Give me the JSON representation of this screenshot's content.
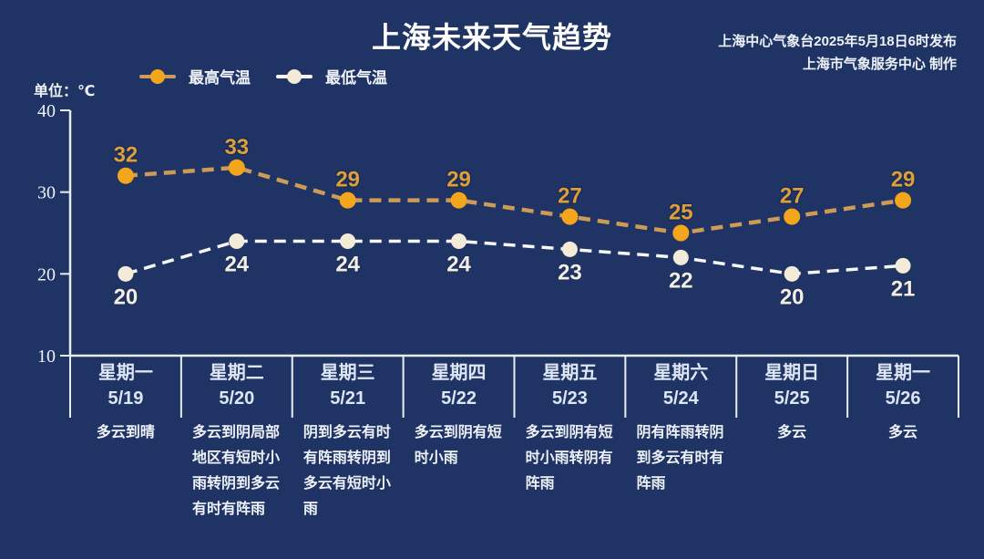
{
  "chart_data": {
    "type": "line",
    "title": "上海未来天气趋势",
    "issued_by": "上海中心气象台2025年5月18日6时发布",
    "produced_by": "上海市气象服务中心 制作",
    "unit_label": "单位：℃",
    "ylim": [
      10,
      40
    ],
    "yticks": [
      40,
      30,
      20,
      10
    ],
    "grid": false,
    "legend_position": "top-left",
    "categories": [
      {
        "day": "星期一",
        "date": "5/19",
        "weather": "多云到晴"
      },
      {
        "day": "星期二",
        "date": "5/20",
        "weather": "多云到阴局部地区有短时小雨转阴到多云有时有阵雨"
      },
      {
        "day": "星期三",
        "date": "5/21",
        "weather": "阴到多云有时有阵雨转阴到多云有短时小雨"
      },
      {
        "day": "星期四",
        "date": "5/22",
        "weather": "多云到阴有短时小雨"
      },
      {
        "day": "星期五",
        "date": "5/23",
        "weather": "多云到阴有短时小雨转阴有阵雨"
      },
      {
        "day": "星期六",
        "date": "5/24",
        "weather": "阴有阵雨转阴到多云有时有阵雨"
      },
      {
        "day": "星期日",
        "date": "5/25",
        "weather": "多云"
      },
      {
        "day": "星期一",
        "date": "5/26",
        "weather": "多云"
      }
    ],
    "series": [
      {
        "name": "最高气温",
        "values": [
          32,
          33,
          29,
          29,
          27,
          25,
          27,
          29
        ],
        "marker_color": "#f3a51c",
        "line_color": "#cd9b57",
        "label_color": "#dd9e3e"
      },
      {
        "name": "最低气温",
        "values": [
          20,
          24,
          24,
          24,
          23,
          22,
          20,
          21
        ],
        "marker_color": "#f3ead8",
        "line_color": "#f5f7fa",
        "label_color": "#f2efe7"
      }
    ],
    "colors": {
      "background": "#1f3364",
      "axis": "#e8edf4",
      "text": "#eef2f8",
      "day_label": "#dce6f4",
      "label_halo": "#1a2a52"
    }
  }
}
